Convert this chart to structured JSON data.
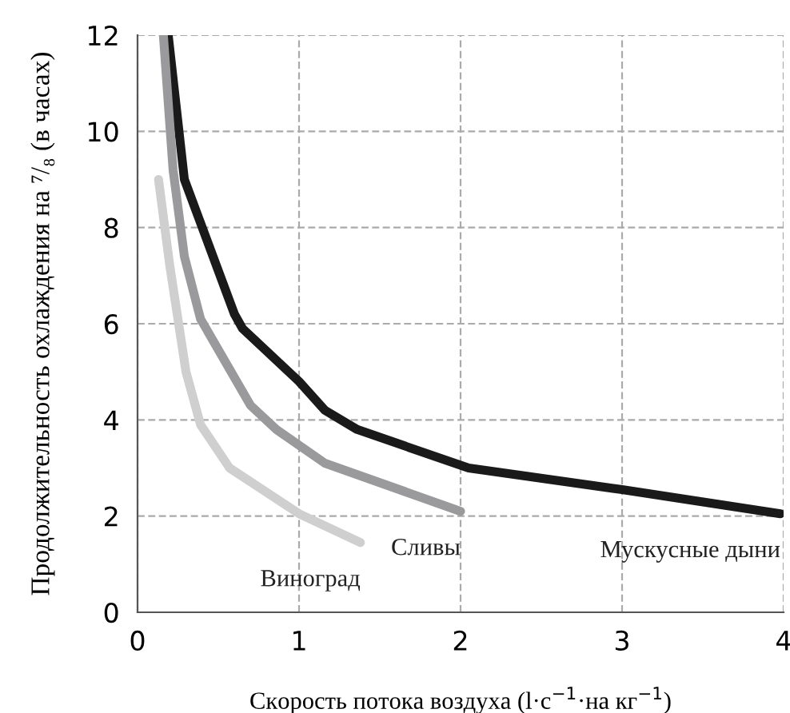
{
  "chart_data": {
    "type": "line",
    "xlabel": "Скорость потока воздуха (l·c$^{−1}$·на кг$^{−1}$)",
    "ylabel": "Продолжительность охлаждения на ⁷/₈ (в часах)",
    "xlim": [
      0,
      4
    ],
    "ylim": [
      0,
      12
    ],
    "xticks": [
      0,
      1,
      2,
      3,
      4
    ],
    "yticks": [
      0,
      2,
      4,
      6,
      8,
      10,
      12
    ],
    "grid": true,
    "legend": false,
    "marker": "none",
    "line_style": "solid",
    "series": [
      {
        "name": "Мускусные дыни",
        "color": "#1a1a1a",
        "x": [
          0.19,
          0.29,
          0.6,
          0.65,
          1.0,
          1.16,
          1.36,
          2.05,
          3.0,
          3.98
        ],
        "values": [
          12,
          9.0,
          6.2,
          5.9,
          4.8,
          4.2,
          3.8,
          3.0,
          2.55,
          2.05
        ]
      },
      {
        "name": "Сливы",
        "color": "#9a9a9c",
        "x": [
          0.16,
          0.22,
          0.29,
          0.39,
          0.7,
          0.86,
          1.16,
          2.0
        ],
        "values": [
          12,
          9.2,
          7.4,
          6.1,
          4.3,
          3.8,
          3.1,
          2.1
        ]
      },
      {
        "name": "Виноград",
        "color": "#cfcfcf",
        "x": [
          0.13,
          0.2,
          0.3,
          0.39,
          0.57,
          1.0,
          1.38
        ],
        "values": [
          9.0,
          7.2,
          5.0,
          3.9,
          3.0,
          2.05,
          1.45
        ]
      }
    ]
  }
}
